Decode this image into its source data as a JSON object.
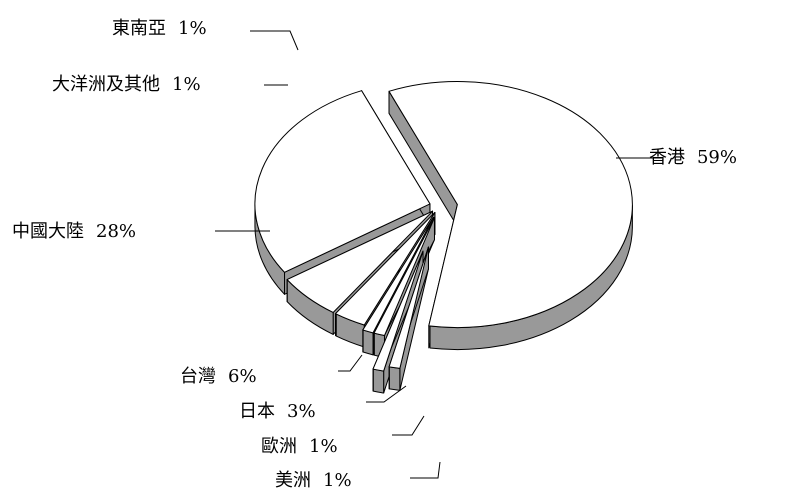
{
  "chart_data": {
    "type": "pie",
    "style": "3d-exploded",
    "categories": [
      "香港",
      "中國大陸",
      "台灣",
      "日本",
      "歐洲",
      "美洲",
      "東南亞",
      "大洋洲及其他"
    ],
    "values": [
      59,
      28,
      6,
      3,
      1,
      1,
      1,
      1
    ],
    "labels": [
      {
        "name": "香港",
        "value": "59%"
      },
      {
        "name": "中國大陸",
        "value": "28%"
      },
      {
        "name": "台灣",
        "value": "6%"
      },
      {
        "name": "日本",
        "value": "3%"
      },
      {
        "name": "歐洲",
        "value": "1%"
      },
      {
        "name": "美洲",
        "value": "1%"
      },
      {
        "name": "東南亞",
        "value": "1%"
      },
      {
        "name": "大洋洲及其他",
        "value": "1%"
      }
    ],
    "unit": "%",
    "colors": {
      "top": "#ffffff",
      "side": "#999999",
      "outline": "#000000"
    }
  }
}
